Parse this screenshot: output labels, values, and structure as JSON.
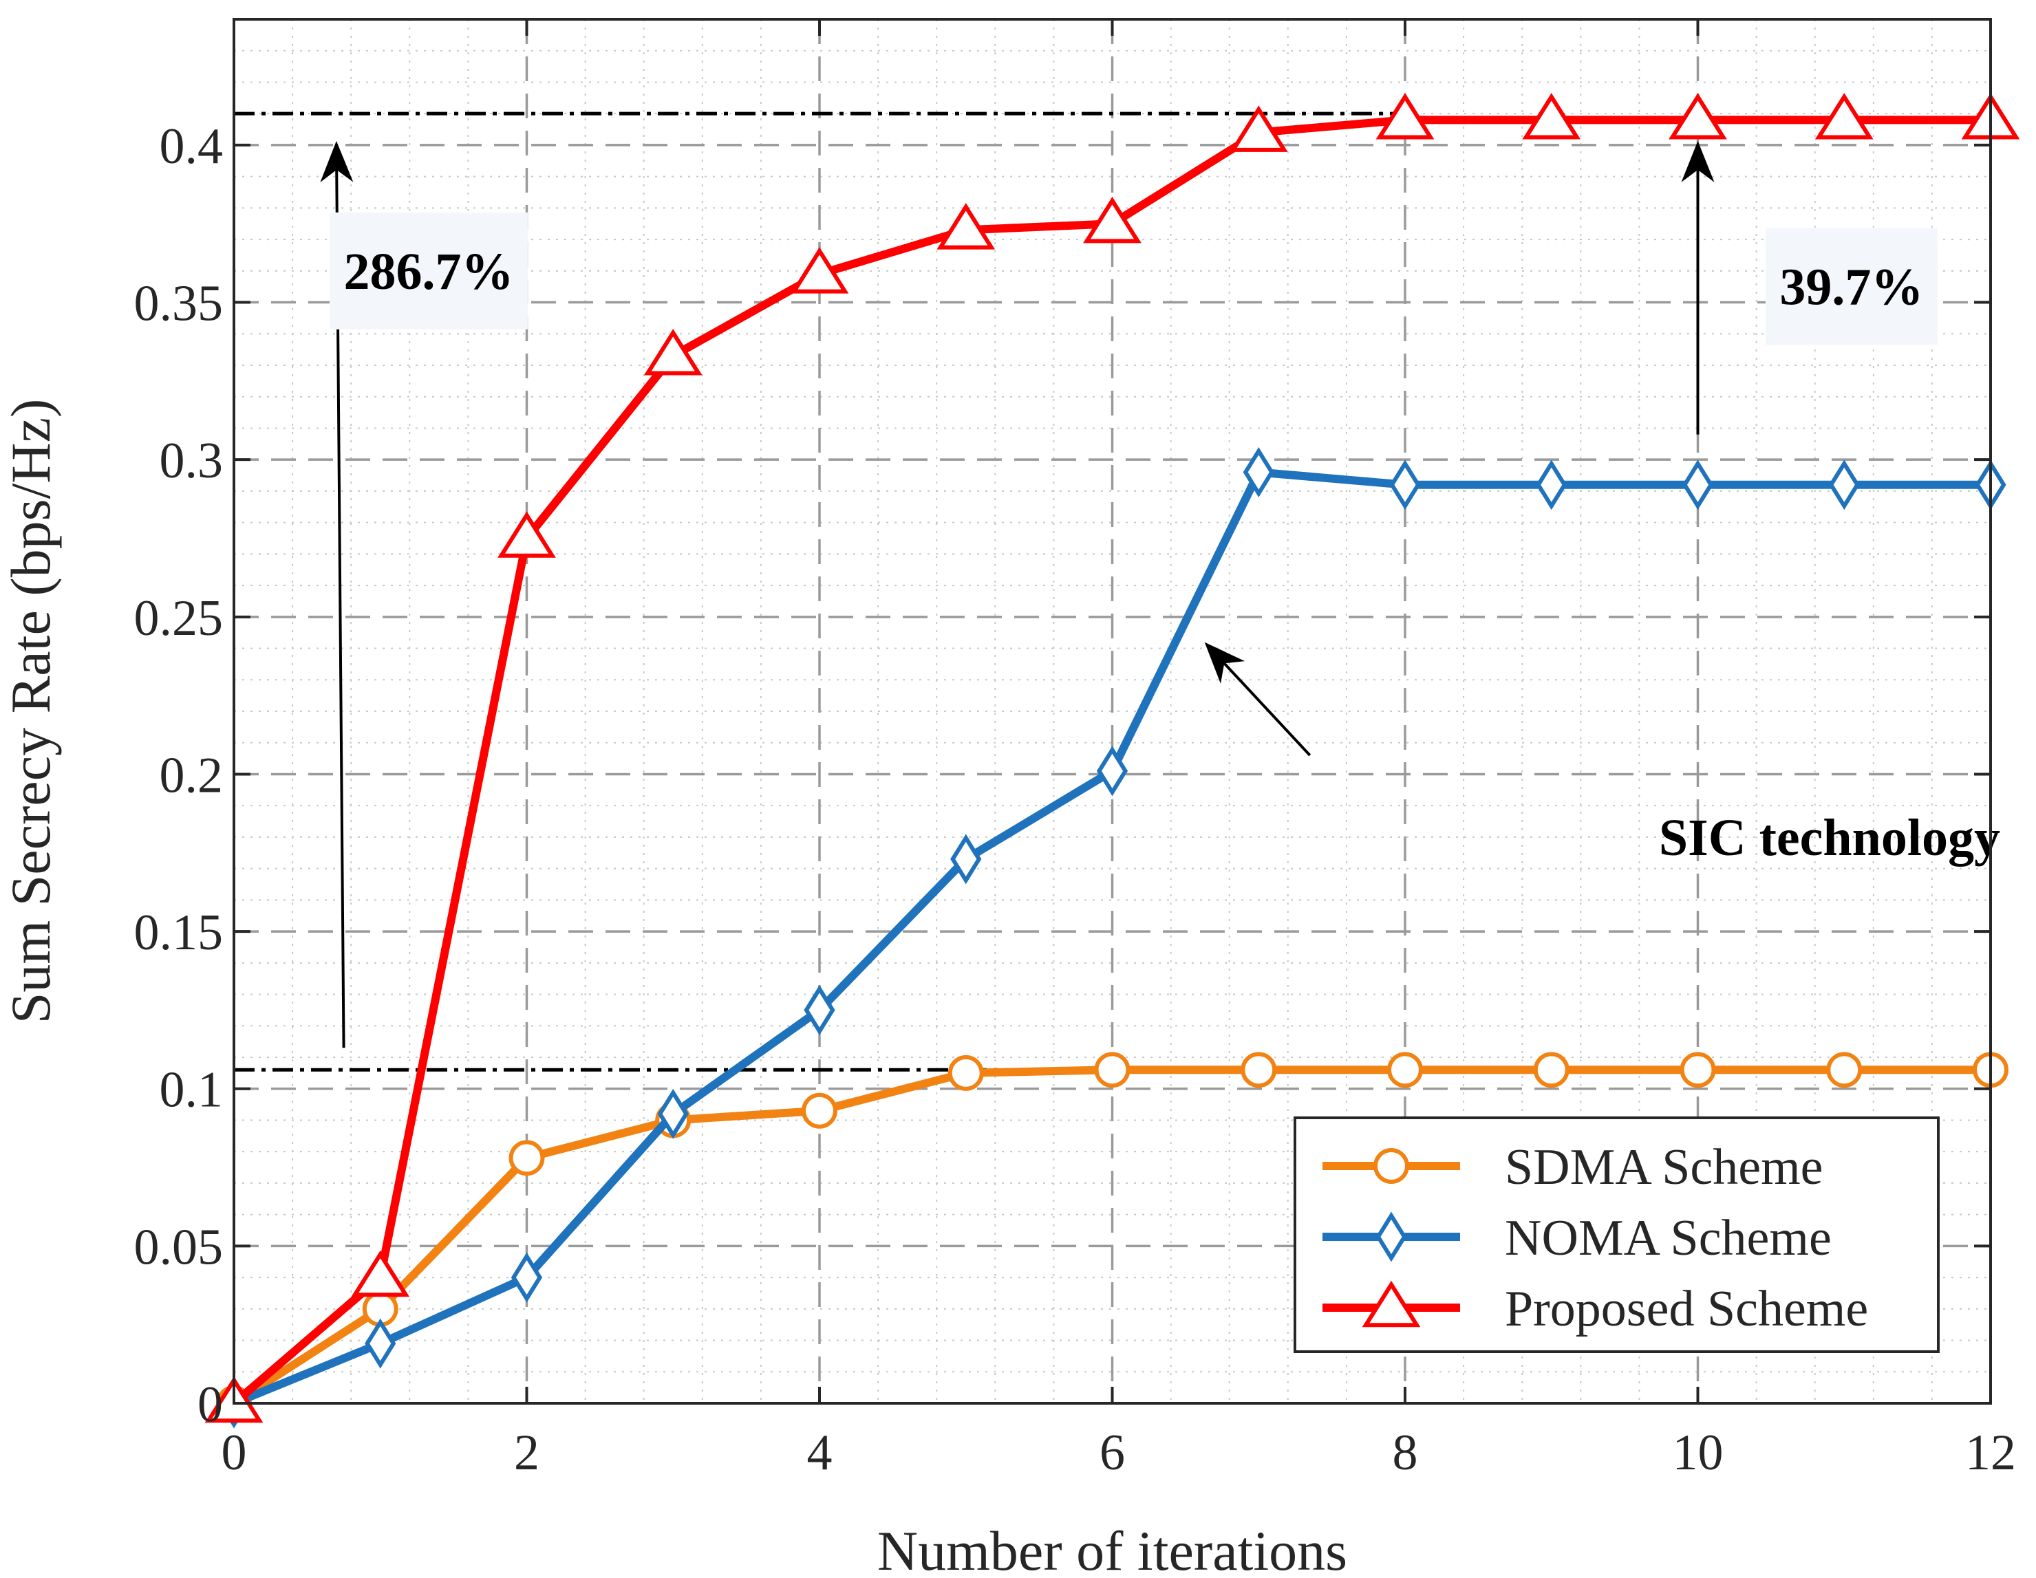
{
  "chart_data": {
    "type": "line",
    "title": "",
    "xlabel": "Number of iterations",
    "ylabel": "Sum Secrecy Rate (bps/Hz)",
    "xlim": [
      0,
      12
    ],
    "ylim": [
      0,
      0.44
    ],
    "grid": true,
    "legend_position": "bottom-right",
    "x": [
      0,
      1,
      2,
      3,
      4,
      5,
      6,
      7,
      8,
      9,
      10,
      11,
      12
    ],
    "x_ticks": [
      0,
      2,
      4,
      6,
      8,
      10,
      12
    ],
    "x_tick_labels": [
      "0",
      "2",
      "4",
      "6",
      "8",
      "10",
      "12"
    ],
    "y_ticks": [
      0,
      0.05,
      0.1,
      0.15,
      0.2,
      0.25,
      0.3,
      0.35,
      0.4
    ],
    "y_tick_labels": [
      "0",
      "0.05",
      "0.1",
      "0.15",
      "0.2",
      "0.25",
      "0.3",
      "0.35",
      "0.4"
    ],
    "series": [
      {
        "name": "SDMA Scheme",
        "color": "#F28313",
        "marker": "circle",
        "values": [
          0,
          0.03,
          0.078,
          0.09,
          0.093,
          0.105,
          0.106,
          0.106,
          0.106,
          0.106,
          0.106,
          0.106,
          0.106
        ]
      },
      {
        "name": "NOMA Scheme",
        "color": "#1F72BC",
        "marker": "diamond",
        "values": [
          0,
          0.019,
          0.04,
          0.092,
          0.125,
          0.173,
          0.201,
          0.296,
          0.292,
          0.292,
          0.292,
          0.292,
          0.292
        ]
      },
      {
        "name": "Proposed Scheme",
        "color": "#FF0000",
        "marker": "triangle",
        "values": [
          0,
          0.04,
          0.275,
          0.333,
          0.359,
          0.373,
          0.375,
          0.404,
          0.408,
          0.408,
          0.408,
          0.408,
          0.408
        ]
      }
    ],
    "reference_lines": [
      {
        "y": 0.41,
        "x_start": 0,
        "x_end": 8,
        "style": "dash-dot"
      },
      {
        "y": 0.106,
        "x_start": 0,
        "x_end": 6,
        "style": "dash-dot"
      }
    ],
    "annotations": [
      {
        "text": "286.7%",
        "x": 1.33,
        "y": 0.36,
        "boxed": true
      },
      {
        "text": "39.7%",
        "x": 11.05,
        "y": 0.355,
        "boxed": true
      },
      {
        "text": "SIC technology",
        "x": 10.9,
        "y": 0.18,
        "boxed": false
      }
    ],
    "arrows": [
      {
        "from": [
          0.75,
          0.113
        ],
        "to": [
          0.7,
          0.4
        ]
      },
      {
        "from": [
          10,
          0.308
        ],
        "to": [
          10,
          0.4
        ]
      },
      {
        "from": [
          7.35,
          0.206
        ],
        "to": [
          6.65,
          0.241
        ]
      }
    ]
  }
}
